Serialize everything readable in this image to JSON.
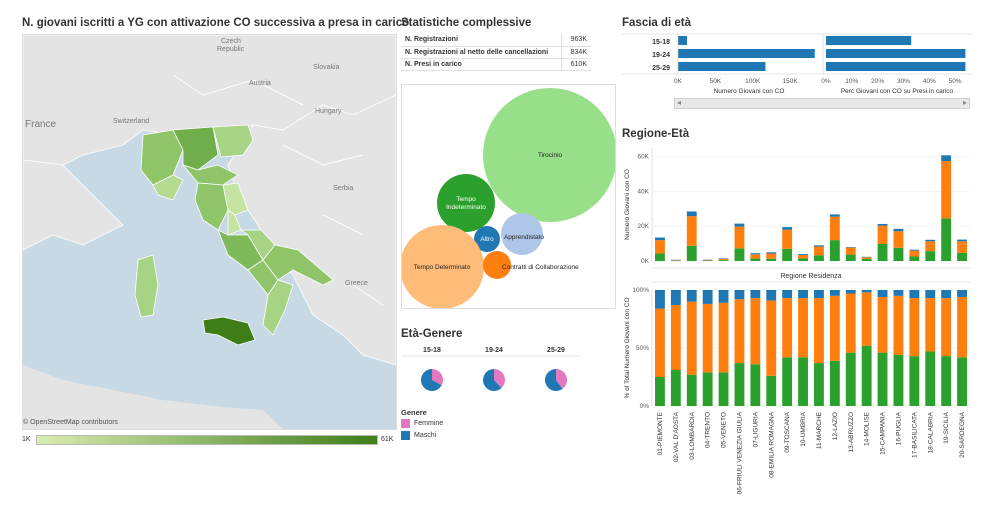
{
  "map": {
    "title": "N. giovani iscritti a YG con attivazione CO successiva a presa in carico",
    "attribution": "© OpenStreetMap contributors",
    "countries": [
      "France",
      "Switzerland",
      "Czech Republic",
      "Slovakia",
      "Austria",
      "Hungary",
      "Serbia",
      "Greece"
    ],
    "scale_min": "1K",
    "scale_max": "61K",
    "colors": {
      "low": "#d8ecb0",
      "high": "#3e7d18",
      "water": "#c8d9e6",
      "land": "#e4e4e4"
    }
  },
  "stats": {
    "title": "Statistiche complessive",
    "rows": [
      {
        "label": "N. Registrazioni",
        "value": "963K"
      },
      {
        "label": "N. Registrazioni al netto delle cancellazioni",
        "value": "834K"
      },
      {
        "label": "N. Presi in carico",
        "value": "610K"
      }
    ]
  },
  "bubbles": {
    "items": [
      {
        "label": "Tirocinio",
        "color": "#98df8a"
      },
      {
        "label": "Tempo Indeterminato",
        "color": "#2ca02c"
      },
      {
        "label": "Apprendistato",
        "color": "#aec7e8"
      },
      {
        "label": "Altro",
        "color": "#1f77b4"
      },
      {
        "label": "Tempo Determinato",
        "color": "#ffbb78"
      },
      {
        "label": "Contratti di Collaborazione",
        "color": "#ff7f0e"
      }
    ]
  },
  "eta_genere": {
    "title": "Età-Genere",
    "groups": [
      "15-18",
      "19-24",
      "25-29"
    ],
    "legend_title": "Genere",
    "legend": [
      {
        "label": "Femmine",
        "color": "#e377c2"
      },
      {
        "label": "Maschi",
        "color": "#1f77b4"
      }
    ]
  },
  "fascia": {
    "title": "Fascia di età",
    "left_xlabel": "Numero Giovani con CO",
    "right_xlabel": "Perc Giovani con CO su Presi in carico",
    "left_ticks": [
      "0K",
      "50K",
      "100K",
      "150K"
    ],
    "right_ticks": [
      "0%",
      "10%",
      "20%",
      "30%",
      "40%",
      "50%"
    ]
  },
  "regione_eta": {
    "title": "Regione-Età",
    "top_ylabel": "Numero Giovani con CO",
    "top_ticks": [
      "0K",
      "20K",
      "40K",
      "60K"
    ],
    "axis_title": "Regione Residenza",
    "bottom_ylabel": "% of Total Numero Giovani con CO",
    "bottom_ticks": [
      "0%",
      "50%",
      "100%"
    ],
    "series_colors": {
      "15-18": "#1f77b4",
      "19-24": "#ff7f0e",
      "25-29": "#2ca02c"
    }
  },
  "chart_data": [
    {
      "type": "map",
      "title": "N. giovani iscritti a YG con attivazione CO successiva a presa in carico",
      "scale": [
        "1K",
        "61K"
      ]
    },
    {
      "type": "bubble",
      "categories": [
        "Tirocinio",
        "Tempo Indeterminato",
        "Apprendistato",
        "Altro",
        "Tempo Determinato",
        "Contratti di Collaborazione"
      ],
      "values": [
        100,
        28,
        16,
        6,
        56,
        8
      ]
    },
    {
      "type": "pie",
      "title": "Età-Genere",
      "categories": [
        "15-18",
        "19-24",
        "25-29"
      ],
      "series": [
        {
          "name": "Femmine",
          "values": [
            33,
            38,
            40
          ]
        },
        {
          "name": "Maschi",
          "values": [
            67,
            62,
            60
          ]
        }
      ]
    },
    {
      "type": "bar",
      "title": "Fascia di età",
      "orientation": "horizontal",
      "categories": [
        "15-18",
        "19-24",
        "25-29"
      ],
      "xlabel": "Numero Giovani con CO",
      "values": [
        12000,
        183000,
        117000
      ],
      "xlim": [
        0,
        190000
      ]
    },
    {
      "type": "bar",
      "orientation": "horizontal",
      "categories": [
        "15-18",
        "19-24",
        "25-29"
      ],
      "xlabel": "Perc Giovani con CO su Presi in carico",
      "values": [
        33,
        54,
        54
      ],
      "xlim": [
        0,
        55
      ]
    },
    {
      "type": "bar",
      "stacked": true,
      "title": "Regione-Età",
      "ylabel": "Numero Giovani con CO",
      "xlabel": "Regione Residenza",
      "ylim": [
        0,
        65000
      ],
      "categories": [
        "01-PIEMONTE",
        "02-VAL D'AOSTA",
        "03-LOMBARDIA",
        "04-TRENTO",
        "05-VENETO",
        "06-FRIULI VENEZIA GIULIA",
        "07-LIGURIA",
        "08-EMILIA ROMAGNA",
        "09-TOSCANA",
        "10-UMBRIA",
        "11-MARCHE",
        "12-LAZIO",
        "13-ABRUZZO",
        "14-MOLISE",
        "15-CAMPANIA",
        "16-PUGLIA",
        "17-BASILICATA",
        "18-CALABRIA",
        "19-SICILIA",
        "20-SARDEGNA"
      ],
      "series": [
        {
          "name": "15-18",
          "values": [
            1500,
            200,
            2700,
            100,
            300,
            1700,
            600,
            700,
            1500,
            500,
            700,
            1300,
            300,
            300,
            1000,
            1400,
            500,
            900,
            3300,
            1000
          ]
        },
        {
          "name": "19-24",
          "values": [
            7700,
            300,
            17000,
            350,
            700,
            12500,
            2500,
            3000,
            11000,
            2000,
            5000,
            13500,
            4000,
            900,
            10500,
            9500,
            3400,
            5600,
            33000,
            6600
          ]
        },
        {
          "name": "25-29",
          "values": [
            4300,
            200,
            8800,
            250,
            500,
            7300,
            1400,
            1300,
            7000,
            1500,
            3300,
            12000,
            3700,
            1200,
            9800,
            7600,
            2600,
            5700,
            24500,
            4700
          ]
        }
      ]
    },
    {
      "type": "bar",
      "stacked": true,
      "ylabel": "% of Total Numero Giovani con CO",
      "xlabel": "Regione Residenza",
      "ylim": [
        0,
        100
      ],
      "categories": [
        "01-PIEMONTE",
        "02-VAL D'AOSTA",
        "03-LOMBARDIA",
        "04-TRENTO",
        "05-VENETO",
        "06-FRIULI VENEZIA GIULIA",
        "07-LIGURIA",
        "08-EMILIA ROMAGNA",
        "09-TOSCANA",
        "10-UMBRIA",
        "11-MARCHE",
        "12-LAZIO",
        "13-ABRUZZO",
        "14-MOLISE",
        "15-CAMPANIA",
        "16-PUGLIA",
        "17-BASILICATA",
        "18-CALABRIA",
        "19-SICILIA",
        "20-SARDEGNA"
      ],
      "series": [
        {
          "name": "15-18",
          "values": [
            16,
            13,
            10,
            12,
            11,
            8,
            7,
            9,
            7,
            7,
            7,
            5,
            3,
            2,
            6,
            5,
            7,
            7,
            7,
            6
          ]
        },
        {
          "name": "19-24",
          "values": [
            59,
            56,
            63,
            59,
            60,
            55,
            57,
            65,
            51,
            51,
            56,
            56,
            51,
            46,
            48,
            51,
            50,
            46,
            50,
            52
          ]
        },
        {
          "name": "25-29",
          "values": [
            25,
            31,
            27,
            29,
            29,
            37,
            36,
            26,
            42,
            42,
            37,
            39,
            46,
            52,
            46,
            44,
            43,
            47,
            43,
            42
          ]
        }
      ]
    }
  ]
}
